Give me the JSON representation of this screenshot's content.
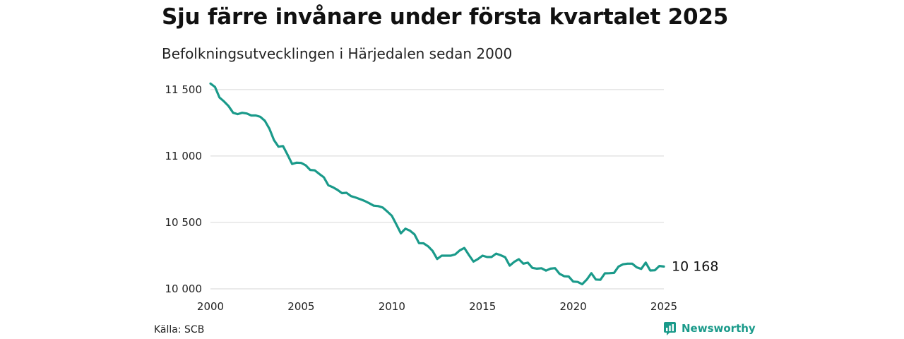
{
  "title": "Sju färre invånare under första kvartalet 2025",
  "subtitle": "Befolkningsutvecklingen i Härjedalen sedan 2000",
  "source": "Källa: SCB",
  "brand": {
    "name": "Newsworthy",
    "icon": "newsworthy-logo-icon"
  },
  "colors": {
    "line": "#1a9a8a",
    "grid": "#dddddd",
    "brand": "#1a9a8a"
  },
  "chart_data": {
    "type": "line",
    "title": "Sju färre invånare under första kvartalet 2025",
    "subtitle": "Befolkningsutvecklingen i Härjedalen sedan 2000",
    "xlabel": "",
    "ylabel": "",
    "xlim": [
      2000,
      2025
    ],
    "ylim": [
      10000,
      11600
    ],
    "xticks": [
      {
        "value": 2000,
        "label": "2000"
      },
      {
        "value": 2005,
        "label": "2005"
      },
      {
        "value": 2010,
        "label": "2010"
      },
      {
        "value": 2015,
        "label": "2015"
      },
      {
        "value": 2020,
        "label": "2020"
      },
      {
        "value": 2025,
        "label": "2025"
      }
    ],
    "yticks": [
      {
        "value": 10000,
        "label": "10 000"
      },
      {
        "value": 10500,
        "label": "10 500"
      },
      {
        "value": 11000,
        "label": "11 000"
      },
      {
        "value": 11500,
        "label": "11 500"
      }
    ],
    "grid": "horizontal",
    "end_label": "10 168",
    "series": [
      {
        "x": [
          2000.0,
          2000.25,
          2000.5,
          2000.75,
          2001.0,
          2001.25,
          2001.5,
          2001.75,
          2002.0,
          2002.25,
          2002.5,
          2002.75,
          2003.0,
          2003.25,
          2003.5,
          2003.75,
          2004.0,
          2004.25,
          2004.5,
          2004.75,
          2005.0,
          2005.25,
          2005.5,
          2005.75,
          2006.0,
          2006.25,
          2006.5,
          2006.75,
          2007.0,
          2007.25,
          2007.5,
          2007.75,
          2008.0,
          2008.25,
          2008.5,
          2008.75,
          2009.0,
          2009.25,
          2009.5,
          2009.75,
          2010.0,
          2010.25,
          2010.5,
          2010.75,
          2011.0,
          2011.25,
          2011.5,
          2011.75,
          2012.0,
          2012.25,
          2012.5,
          2012.75,
          2013.0,
          2013.25,
          2013.5,
          2013.75,
          2014.0,
          2014.25,
          2014.5,
          2014.75,
          2015.0,
          2015.25,
          2015.5,
          2015.75,
          2016.0,
          2016.25,
          2016.5,
          2016.75,
          2017.0,
          2017.25,
          2017.5,
          2017.75,
          2018.0,
          2018.25,
          2018.5,
          2018.75,
          2019.0,
          2019.25,
          2019.5,
          2019.75,
          2020.0,
          2020.25,
          2020.5,
          2020.75,
          2021.0,
          2021.25,
          2021.5,
          2021.75,
          2022.0,
          2022.25,
          2022.5,
          2022.75,
          2023.0,
          2023.25,
          2023.5,
          2023.75,
          2024.0,
          2024.25,
          2024.5,
          2024.75,
          2025.0
        ],
        "y": [
          11545,
          11520,
          11440,
          11410,
          11375,
          11325,
          11315,
          11325,
          11320,
          11305,
          11305,
          11295,
          11265,
          11205,
          11120,
          11070,
          11075,
          11010,
          10940,
          10950,
          10948,
          10930,
          10895,
          10892,
          10865,
          10840,
          10780,
          10765,
          10745,
          10720,
          10723,
          10698,
          10688,
          10675,
          10662,
          10645,
          10626,
          10623,
          10612,
          10582,
          10550,
          10485,
          10418,
          10453,
          10438,
          10410,
          10344,
          10343,
          10320,
          10285,
          10225,
          10250,
          10250,
          10250,
          10260,
          10290,
          10308,
          10255,
          10205,
          10225,
          10250,
          10240,
          10240,
          10265,
          10253,
          10238,
          10175,
          10203,
          10223,
          10190,
          10197,
          10158,
          10152,
          10155,
          10137,
          10152,
          10156,
          10113,
          10095,
          10093,
          10055,
          10052,
          10035,
          10070,
          10118,
          10070,
          10068,
          10117,
          10118,
          10120,
          10168,
          10185,
          10190,
          10190,
          10162,
          10150,
          10198,
          10138,
          10140,
          10172,
          10168
        ]
      }
    ]
  }
}
